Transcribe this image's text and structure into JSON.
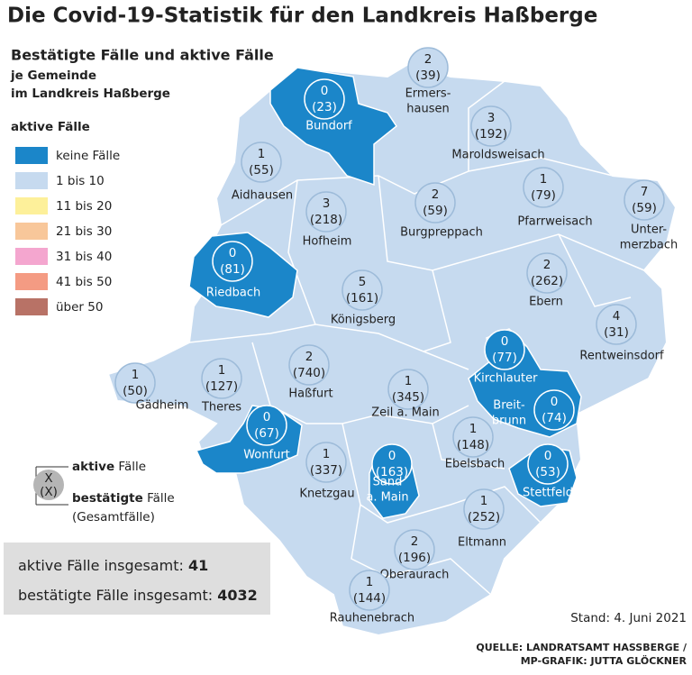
{
  "header": {
    "title": "Die Covid-19-Statistik für den Landkreis Haßberge",
    "subtitle": "Bestätigte Fälle und aktive Fälle",
    "lines": [
      "je Gemeinde",
      "im Landkreis Haßberge"
    ]
  },
  "legend": {
    "title": "aktive Fälle",
    "items": [
      {
        "label": "keine Fälle",
        "color": "#1b86c9"
      },
      {
        "label": "1 bis 10",
        "color": "#c6daef"
      },
      {
        "label": "11 bis 20",
        "color": "#fdf09a"
      },
      {
        "label": "21 bis 30",
        "color": "#f8c79a"
      },
      {
        "label": "31 bis 40",
        "color": "#f4a6cf"
      },
      {
        "label": "41 bis 50",
        "color": "#f49b83"
      },
      {
        "label": "über 50",
        "color": "#b87266"
      }
    ]
  },
  "key": {
    "symbol_active": "X",
    "symbol_confirmed": "(X)",
    "active": [
      "aktive",
      "Fälle"
    ],
    "confirmed": [
      "bestätigte",
      "Fälle"
    ],
    "note": "(Gesamtfälle)"
  },
  "municipalities": [
    {
      "name": [
        "Ermers-",
        "hausen"
      ],
      "active": 2,
      "confirmed": "(39)"
    },
    {
      "name": [
        "Bundorf"
      ],
      "active": 0,
      "confirmed": "(23)"
    },
    {
      "name": [
        "Maroldsweisach"
      ],
      "active": 3,
      "confirmed": "(192)"
    },
    {
      "name": [
        "Aidhausen"
      ],
      "active": 1,
      "confirmed": "(55)"
    },
    {
      "name": [
        "Hofheim"
      ],
      "active": 3,
      "confirmed": "(218)"
    },
    {
      "name": [
        "Burgpreppach"
      ],
      "active": 2,
      "confirmed": "(59)"
    },
    {
      "name": [
        "Pfarrweisach"
      ],
      "active": 1,
      "confirmed": "(79)"
    },
    {
      "name": [
        "Unter-",
        "merzbach"
      ],
      "active": 7,
      "confirmed": "(59)"
    },
    {
      "name": [
        "Riedbach"
      ],
      "active": 0,
      "confirmed": "(81)"
    },
    {
      "name": [
        "Königsberg"
      ],
      "active": 5,
      "confirmed": "(161)"
    },
    {
      "name": [
        "Ebern"
      ],
      "active": 2,
      "confirmed": "(262)"
    },
    {
      "name": [
        "Rentweinsdorf"
      ],
      "active": 4,
      "confirmed": "(31)"
    },
    {
      "name": [
        "Gädheim"
      ],
      "active": 1,
      "confirmed": "(50)"
    },
    {
      "name": [
        "Theres"
      ],
      "active": 1,
      "confirmed": "(127)"
    },
    {
      "name": [
        "Haßfurt"
      ],
      "active": 2,
      "confirmed": "(740)"
    },
    {
      "name": [
        "Zeil a. Main"
      ],
      "active": 1,
      "confirmed": "(345)"
    },
    {
      "name": [
        "Kirchlauter"
      ],
      "active": 0,
      "confirmed": "(77)"
    },
    {
      "name": [
        "Breit-",
        "brunn"
      ],
      "active": 0,
      "confirmed": "(74)"
    },
    {
      "name": [
        "Ebelsbach"
      ],
      "active": 1,
      "confirmed": "(148)"
    },
    {
      "name": [
        "Wonfurt"
      ],
      "active": 0,
      "confirmed": "(67)"
    },
    {
      "name": [
        "Knetzgau"
      ],
      "active": 1,
      "confirmed": "(337)"
    },
    {
      "name": [
        "Sand",
        "a. Main"
      ],
      "active": 0,
      "confirmed": "(163)"
    },
    {
      "name": [
        "Stettfeld"
      ],
      "active": 0,
      "confirmed": "(53)"
    },
    {
      "name": [
        "Eltmann"
      ],
      "active": 1,
      "confirmed": "(252)"
    },
    {
      "name": [
        "Oberaurach"
      ],
      "active": 2,
      "confirmed": "(196)"
    },
    {
      "name": [
        "Rauhenebrach"
      ],
      "active": 1,
      "confirmed": "(144)"
    }
  ],
  "totals": {
    "active_label": "aktive Fälle insgesamt:",
    "active": 41,
    "confirmed_label": "bestätigte Fälle insgesamt:",
    "confirmed": 4032
  },
  "footer": {
    "stand": "Stand: 4. Juni 2021",
    "source": [
      "QUELLE: LANDRATSAMT HASSBERGE /",
      "MP-GRAFIK: JUTTA GLÖCKNER"
    ]
  }
}
